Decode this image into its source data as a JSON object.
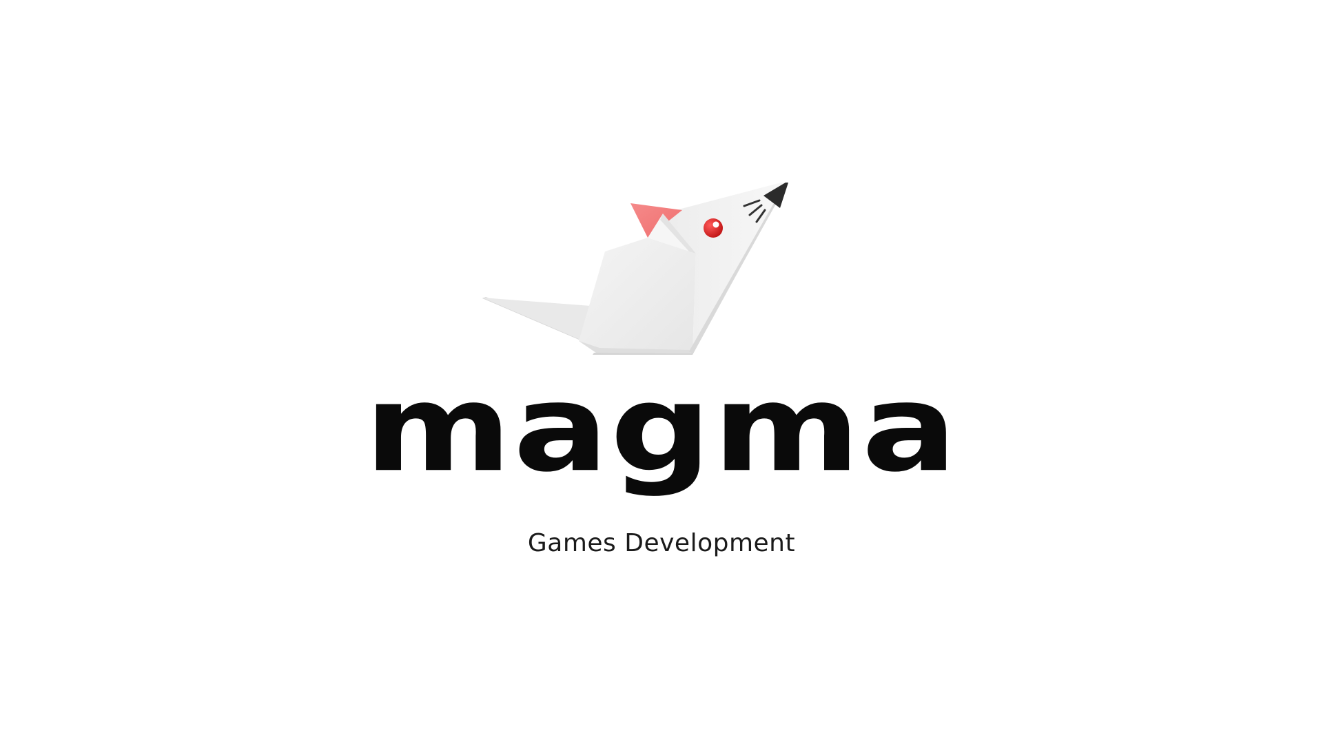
{
  "brand": {
    "name": "magma",
    "tagline": "Games Development",
    "logo_icon": "origami-mouse-icon"
  },
  "colors": {
    "background": "#ffffff",
    "text": "#0a0a0a",
    "ear": "#f47e7e",
    "eye": "#d81e1e",
    "nose": "#2a2a2a",
    "paper": "#f1f1f1"
  }
}
